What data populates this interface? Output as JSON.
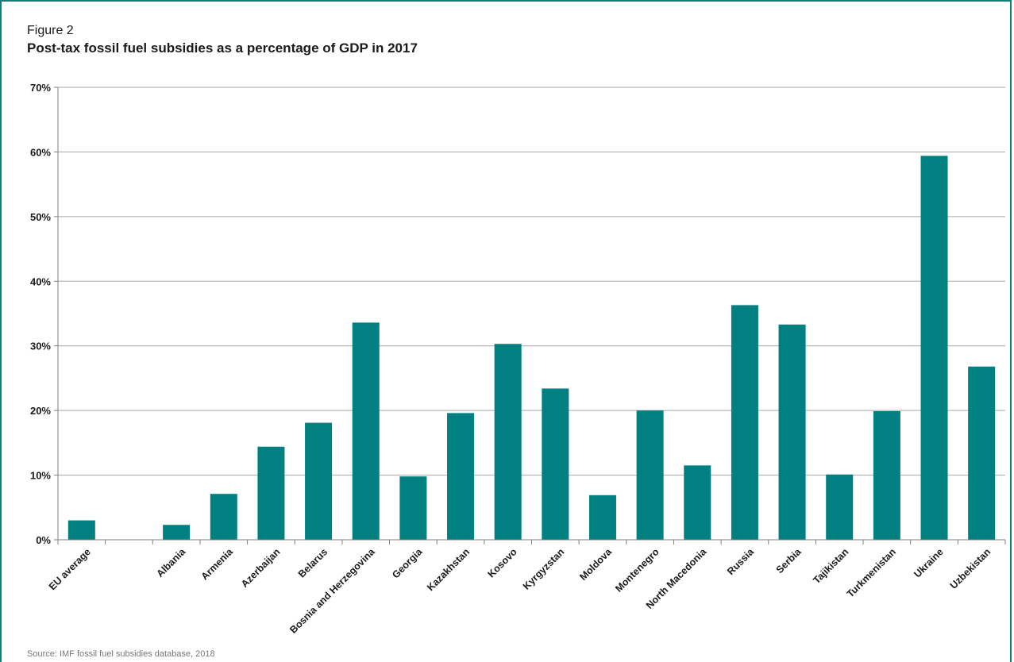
{
  "figure_label": "Figure 2",
  "source": "Source: IMF fossil fuel subsidies database, 2018",
  "colors": {
    "bar": "#008080",
    "grid": "#a6a6a6",
    "axis": "#808080",
    "border": "#0e8079"
  },
  "chart_data": {
    "type": "bar",
    "title": "Post-tax fossil fuel subsidies as a percentage of GDP in 2017",
    "xlabel": "",
    "ylabel": "",
    "ylim": [
      0,
      70
    ],
    "yticks": [
      0,
      10,
      20,
      30,
      40,
      50,
      60,
      70
    ],
    "ytick_labels": [
      "0%",
      "10%",
      "20%",
      "30%",
      "40%",
      "50%",
      "60%",
      "70%"
    ],
    "grid": true,
    "categories": [
      "EU average",
      "",
      "Albania",
      "Armenia",
      "Azerbaijan",
      "Belarus",
      "Bosnia and Herzegovina",
      "Georgia",
      "Kazakhstan",
      "Kosovo",
      "Kyrgyzstan",
      "Moldova",
      "Montenegro",
      "North Macedonia",
      "Russia",
      "Serbia",
      "Tajikistan",
      "Turkmenistan",
      "Ukraine",
      "Uzbekistan"
    ],
    "values": [
      3.0,
      null,
      2.3,
      7.1,
      14.4,
      18.1,
      33.6,
      9.8,
      19.6,
      30.3,
      23.4,
      6.9,
      20.0,
      11.5,
      36.3,
      33.3,
      10.1,
      19.9,
      59.4,
      26.8
    ]
  }
}
